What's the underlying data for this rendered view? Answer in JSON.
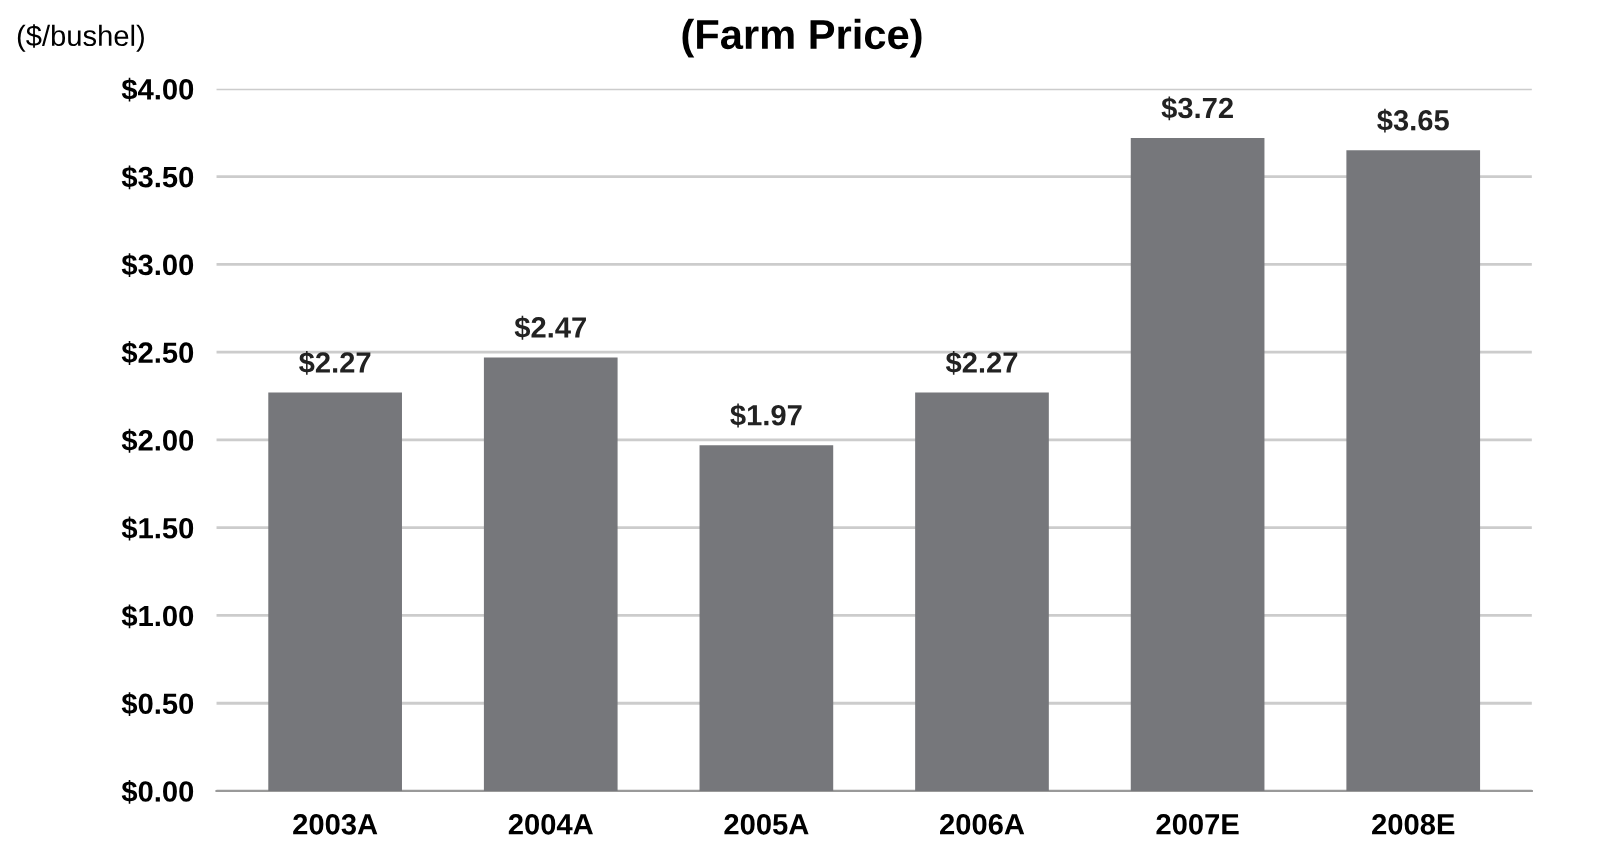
{
  "chart_data": {
    "type": "bar",
    "title": "(Farm Price)",
    "ylabel": "($/bushel)",
    "categories": [
      "2003A",
      "2004A",
      "2005A",
      "2006A",
      "2007E",
      "2008E"
    ],
    "values": [
      2.27,
      2.47,
      1.97,
      2.27,
      3.72,
      3.65
    ],
    "value_labels": [
      "$2.27",
      "$2.47",
      "$1.97",
      "$2.27",
      "$3.72",
      "$3.65"
    ],
    "color": "#76777b",
    "ylim": [
      0,
      4
    ],
    "yticks": [
      {
        "value": 0,
        "label": "$0.00"
      },
      {
        "value": 0.5,
        "label": "$0.50"
      },
      {
        "value": 1,
        "label": "$1.00"
      },
      {
        "value": 1.5,
        "label": "$1.50"
      },
      {
        "value": 2,
        "label": "$2.00"
      },
      {
        "value": 2.5,
        "label": "$2.50"
      },
      {
        "value": 3,
        "label": "$3.00"
      },
      {
        "value": 3.5,
        "label": "$3.50"
      },
      {
        "value": 4,
        "label": "$4.00"
      }
    ],
    "grid": "y",
    "legend": false
  }
}
